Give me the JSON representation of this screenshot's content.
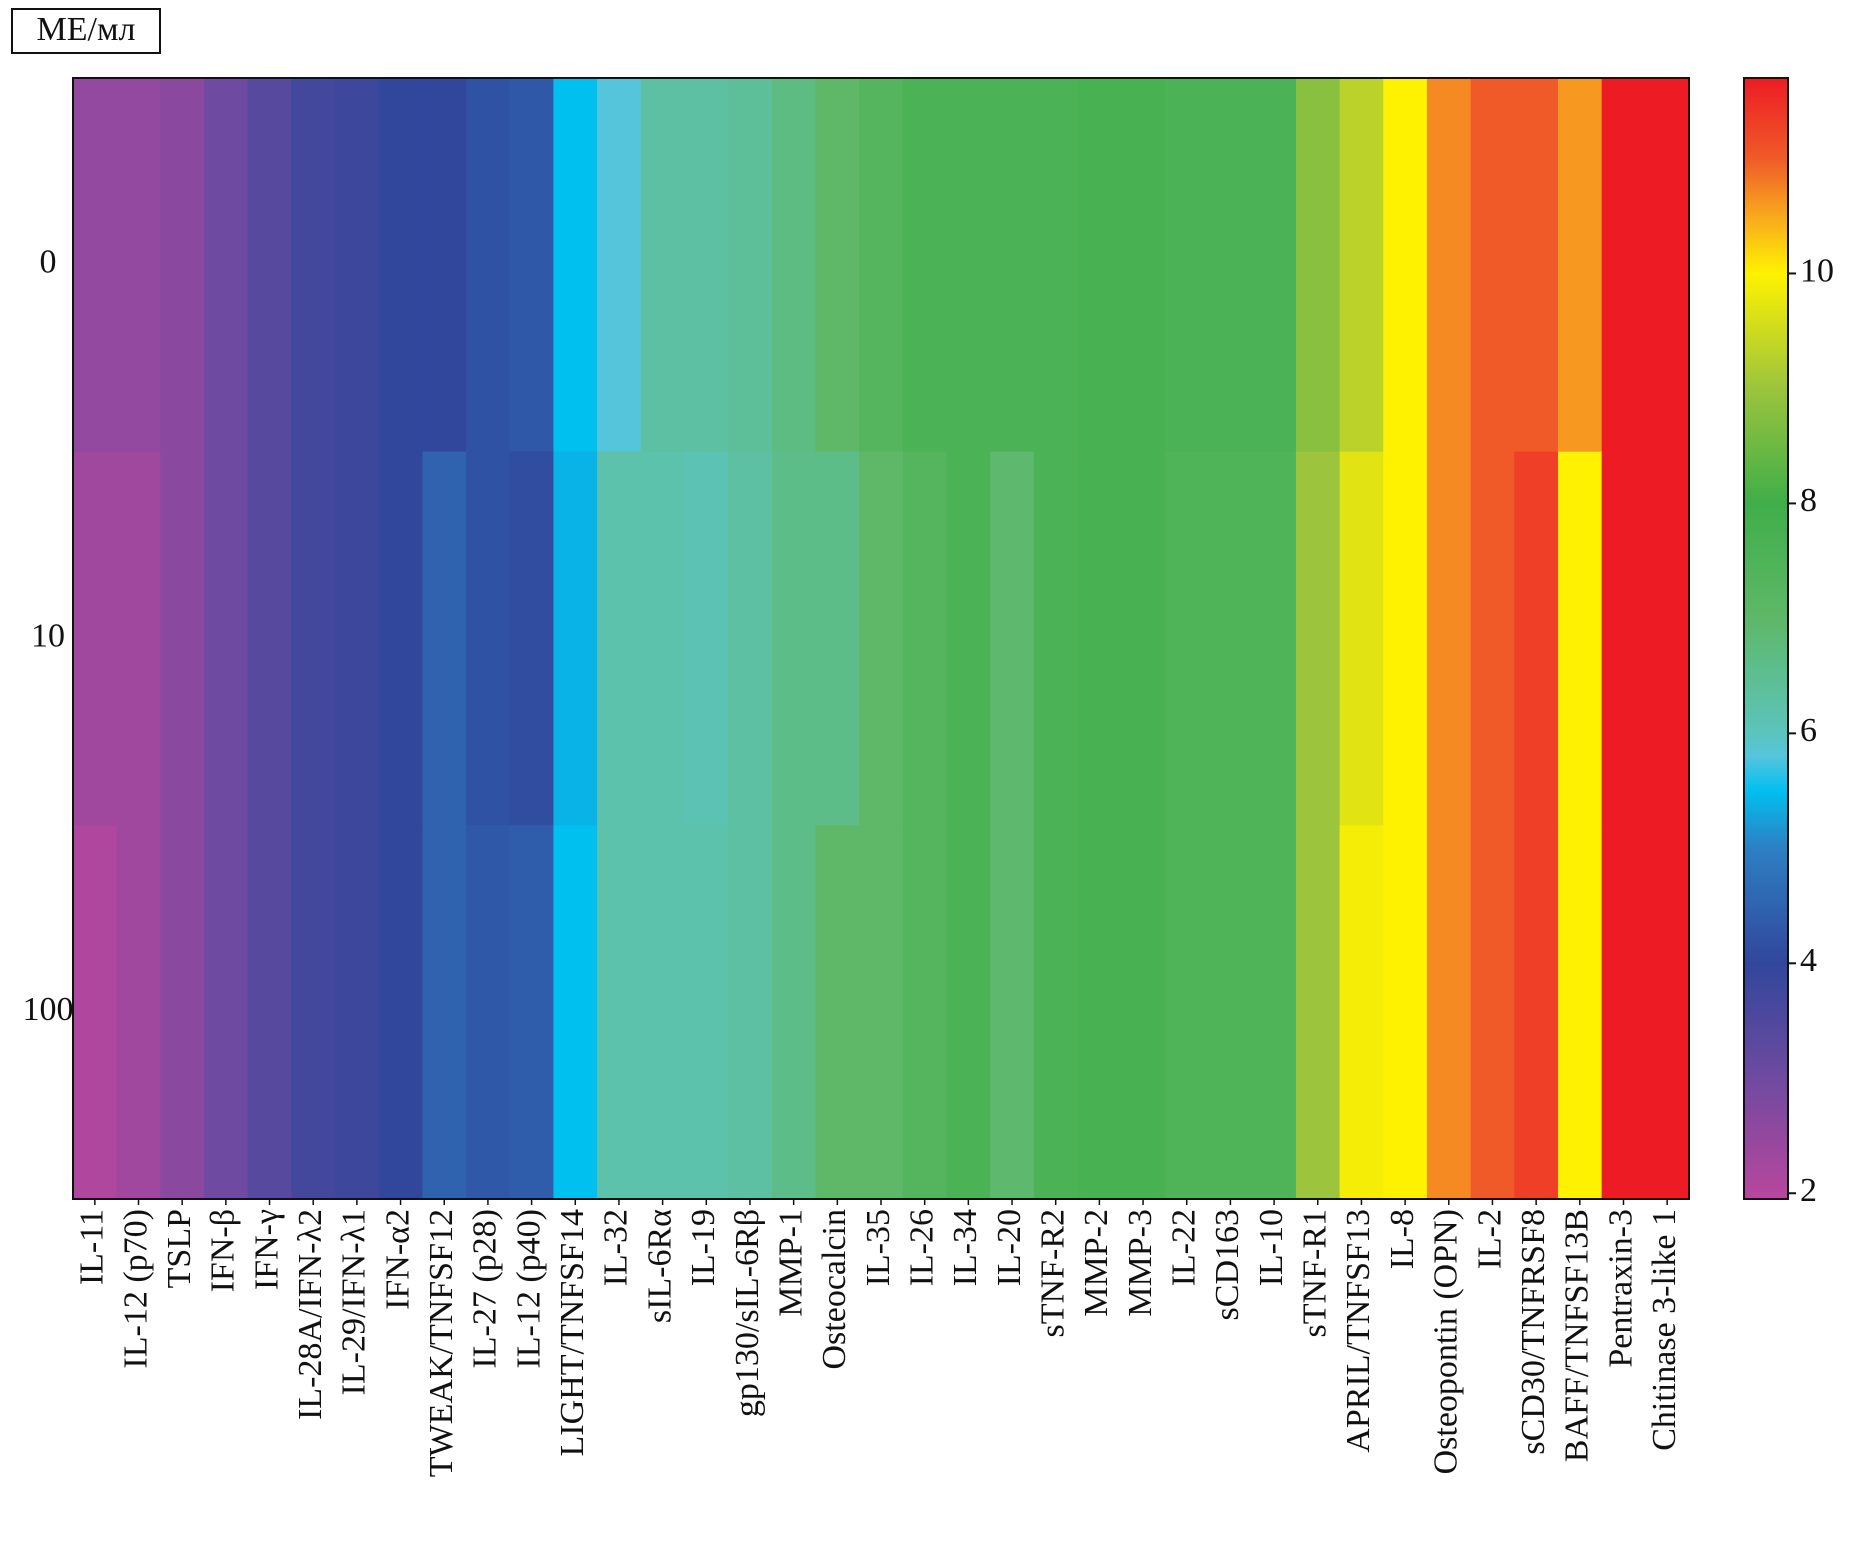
{
  "chart_data": {
    "type": "heatmap",
    "title": "МЕ/мл",
    "x": [
      "IL-11",
      "IL-12 (p70)",
      "TSLP",
      "IFN-β",
      "IFN-γ",
      "IL-28A/IFN-λ2",
      "IL-29/IFN-λ1",
      "IFN-α2",
      "TWEAK/TNFSF12",
      "IL-27 (p28)",
      "IL-12 (p40)",
      "LIGHT/TNFSF14",
      "IL-32",
      "sIL-6Rα",
      "IL-19",
      "gp130/sIL-6Rβ",
      "MMP-1",
      "Osteocalcin",
      "IL-35",
      "IL-26",
      "IL-34",
      "IL-20",
      "sTNF-R2",
      "MMP-2",
      "MMP-3",
      "IL-22",
      "sCD163",
      "IL-10",
      "sTNF-R1",
      "APRIL/TNFSF13",
      "IL-8",
      "Osteopontin (OPN)",
      "IL-2",
      "sCD30/TNFRSF8",
      "BAFF/TNFSF13B",
      "Pentraxin-3",
      "Chitinase 3-like 1"
    ],
    "y": [
      "0",
      "10",
      "100"
    ],
    "z": [
      [
        2.5,
        2.5,
        2.6,
        3.0,
        3.4,
        3.7,
        3.8,
        4.0,
        4.0,
        4.2,
        4.3,
        5.5,
        5.8,
        6.3,
        6.3,
        6.4,
        6.7,
        7.0,
        7.3,
        7.6,
        7.6,
        7.6,
        7.6,
        7.7,
        7.7,
        7.6,
        7.6,
        7.6,
        8.8,
        9.3,
        10.0,
        10.7,
        11.0,
        11.0,
        10.6,
        11.7,
        11.7
      ],
      [
        2.3,
        2.3,
        2.6,
        3.0,
        3.4,
        3.7,
        3.8,
        4.0,
        4.5,
        4.2,
        4.1,
        5.4,
        6.2,
        6.2,
        6.1,
        6.3,
        6.6,
        6.6,
        7.0,
        7.3,
        7.6,
        6.9,
        7.6,
        7.7,
        7.7,
        7.5,
        7.5,
        7.5,
        9.0,
        9.7,
        10.0,
        10.7,
        11.0,
        11.3,
        10.0,
        11.7,
        11.7
      ],
      [
        2.1,
        2.3,
        2.6,
        3.0,
        3.4,
        3.7,
        3.8,
        4.0,
        4.5,
        4.3,
        4.4,
        5.5,
        6.2,
        6.2,
        6.2,
        6.3,
        6.6,
        7.0,
        7.0,
        7.3,
        7.6,
        6.9,
        7.6,
        7.7,
        7.7,
        7.5,
        7.5,
        7.5,
        9.0,
        9.9,
        10.0,
        10.7,
        11.0,
        11.3,
        10.0,
        11.7,
        11.7
      ]
    ],
    "zlim": [
      1.95,
      11.7
    ],
    "zticks": [
      2,
      4,
      6,
      8,
      10
    ],
    "colorscale": [
      [
        2,
        "#b5479d"
      ],
      [
        3,
        "#6e4aa0"
      ],
      [
        4,
        "#31479c"
      ],
      [
        5,
        "#2d7fc3"
      ],
      [
        5.5,
        "#00c0f0"
      ],
      [
        5.8,
        "#55c5dc"
      ],
      [
        6,
        "#5cc4bc"
      ],
      [
        7,
        "#5eb867"
      ],
      [
        8,
        "#3fae49"
      ],
      [
        9,
        "#9cc43c"
      ],
      [
        10,
        "#fff200"
      ],
      [
        10.5,
        "#f9a81e"
      ],
      [
        11,
        "#f05a28"
      ],
      [
        11.7,
        "#ed1c24"
      ]
    ]
  }
}
